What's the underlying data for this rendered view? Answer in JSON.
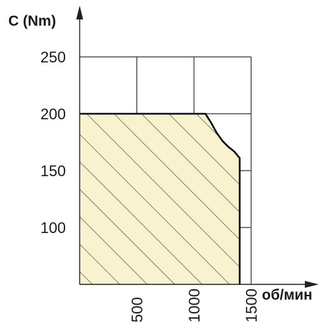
{
  "chart_data": {
    "type": "area",
    "ylabel": "C (Nm)",
    "xlabel": "об/мин",
    "x_ticks": [
      "500",
      "1000",
      "1500"
    ],
    "y_ticks": [
      "100",
      "150",
      "200",
      "250"
    ],
    "xlim": [
      0,
      1500
    ],
    "ylim": [
      50,
      250
    ],
    "grid": true,
    "series": [
      {
        "x": [
          0,
          1100,
          1150,
          1200,
          1250,
          1300,
          1350,
          1400,
          1400,
          0
        ],
        "y": [
          200,
          200,
          192,
          183,
          176,
          171,
          167,
          161,
          50,
          50
        ]
      }
    ],
    "fill_color": "#f8f2cf",
    "hatch_color": "#4a4a4a",
    "line_color": "#111111"
  }
}
